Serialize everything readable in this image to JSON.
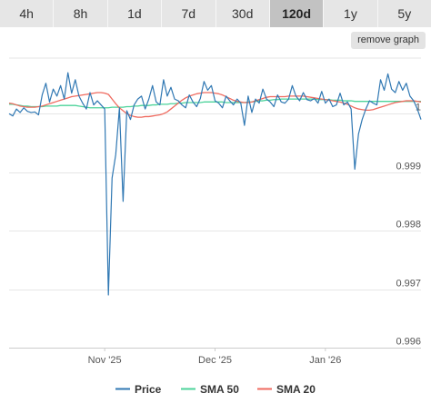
{
  "tabs": [
    {
      "label": "4h",
      "active": false
    },
    {
      "label": "8h",
      "active": false
    },
    {
      "label": "1d",
      "active": false
    },
    {
      "label": "7d",
      "active": false
    },
    {
      "label": "30d",
      "active": false
    },
    {
      "label": "120d",
      "active": true
    },
    {
      "label": "1y",
      "active": false
    },
    {
      "label": "5y",
      "active": false
    }
  ],
  "remove_graph_label": "remove graph",
  "chart_data": {
    "type": "line",
    "ylim": [
      0.996,
      1.00095
    ],
    "y_ticks": [
      0.996,
      0.997,
      0.998,
      0.999,
      1
    ],
    "y_tick_labels": [
      "0.996",
      "0.997",
      "0.998",
      "0.999",
      "1"
    ],
    "x_tick_labels": [
      "Nov '25",
      "Dec '25",
      "Jan '26"
    ],
    "x_tick_index": [
      26,
      56,
      86
    ],
    "grid": true,
    "legend_position": "bottom-center",
    "series": [
      {
        "name": "Price",
        "color": "#3078b3",
        "values": [
          1.0,
          0.99996,
          1.00008,
          1.00002,
          1.0001,
          1.00004,
          1.00002,
          1.00003,
          0.99998,
          1.00032,
          1.00052,
          1.0002,
          1.00042,
          1.0003,
          1.00048,
          1.00025,
          1.0007,
          1.00035,
          1.00058,
          1.0003,
          1.00018,
          1.00008,
          1.00036,
          1.00015,
          1.00022,
          1.00015,
          1.00008,
          0.9969,
          0.9989,
          0.9993,
          1.0001,
          0.9985,
          1.00005,
          0.9999,
          1.00015,
          1.00025,
          1.0003,
          1.00008,
          1.00025,
          1.00048,
          1.0002,
          1.00015,
          1.00058,
          1.0003,
          1.00045,
          1.00025,
          1.00022,
          1.00015,
          1.0001,
          1.00032,
          1.0002,
          1.00012,
          1.00026,
          1.00055,
          1.0004,
          1.00048,
          1.00022,
          1.00018,
          1.0001,
          1.0003,
          1.00022,
          1.00015,
          1.00025,
          1.00018,
          0.9998,
          1.0003,
          1.00002,
          1.00025,
          1.00018,
          1.00042,
          1.00025,
          1.0002,
          1.00012,
          1.00032,
          1.0002,
          1.00018,
          1.00025,
          1.00048,
          1.0003,
          1.00022,
          1.00036,
          1.00024,
          1.00022,
          1.00026,
          1.00018,
          1.00038,
          1.00018,
          1.00025,
          1.00012,
          1.00015,
          1.00035,
          1.00015,
          1.0002,
          1.00008,
          0.99905,
          0.99965,
          0.9999,
          1.00008,
          1.00022,
          1.00018,
          1.00015,
          1.00058,
          1.0004,
          1.00068,
          1.00042,
          1.00036,
          1.00055,
          1.0004,
          1.00052,
          1.0003,
          1.00022,
          1.00008,
          0.9999
        ]
      },
      {
        "name": "SMA 50",
        "color": "#4cd39a",
        "values": [
          1.00016,
          1.00016,
          1.00015,
          1.00014,
          1.00013,
          1.00013,
          1.00012,
          1.00012,
          1.00012,
          1.00012,
          1.00013,
          1.00013,
          1.00013,
          1.00013,
          1.00014,
          1.00014,
          1.00014,
          1.00014,
          1.00014,
          1.00013,
          1.00012,
          1.00011,
          1.0001,
          1.0001,
          1.0001,
          1.0001,
          1.0001,
          1.0001,
          1.00011,
          1.00011,
          1.00011,
          1.00011,
          1.00012,
          1.00012,
          1.00013,
          1.00013,
          1.00014,
          1.00014,
          1.00014,
          1.00015,
          1.00015,
          1.00016,
          1.00016,
          1.00016,
          1.00017,
          1.00017,
          1.00018,
          1.00018,
          1.00019,
          1.00019,
          1.00019,
          1.00019,
          1.00019,
          1.0002,
          1.0002,
          1.0002,
          1.0002,
          1.0002,
          1.0002,
          1.00019,
          1.00019,
          1.00019,
          1.00019,
          1.00019,
          1.00019,
          1.0002,
          1.0002,
          1.00021,
          1.00022,
          1.00022,
          1.00023,
          1.00023,
          1.00024,
          1.00024,
          1.00025,
          1.00025,
          1.00025,
          1.00025,
          1.00025,
          1.00025,
          1.00025,
          1.00025,
          1.00025,
          1.00025,
          1.00024,
          1.00024,
          1.00024,
          1.00024,
          1.00023,
          1.00023,
          1.00023,
          1.00022,
          1.00022,
          1.00022,
          1.00021,
          1.00021,
          1.00021,
          1.00021,
          1.00021,
          1.00021,
          1.00021,
          1.00021,
          1.00021,
          1.00021,
          1.00021,
          1.00021,
          1.00021,
          1.00021,
          1.00021,
          1.00021,
          1.00021,
          1.00021,
          1.00021
        ]
      },
      {
        "name": "SMA 20",
        "color": "#ef6a5f",
        "values": [
          1.00018,
          1.00017,
          1.00015,
          1.00013,
          1.00012,
          1.00011,
          1.00011,
          1.00011,
          1.00012,
          1.00013,
          1.00015,
          1.00017,
          1.00019,
          1.00021,
          1.00023,
          1.00025,
          1.00027,
          1.00029,
          1.0003,
          1.00031,
          1.00032,
          1.00033,
          1.00034,
          1.00035,
          1.00036,
          1.00036,
          1.00035,
          1.00033,
          1.00025,
          1.00017,
          1.0001,
          1.00005,
          1.0,
          0.99997,
          0.99995,
          0.99994,
          0.99994,
          0.99995,
          0.99995,
          0.99996,
          0.99997,
          0.99998,
          1.0,
          1.00003,
          1.00008,
          1.00013,
          1.00018,
          1.00023,
          1.00027,
          1.0003,
          1.00032,
          1.00034,
          1.00035,
          1.00036,
          1.00036,
          1.00036,
          1.00035,
          1.00034,
          1.00032,
          1.00029,
          1.00026,
          1.00023,
          1.00021,
          1.0002,
          1.00019,
          1.00019,
          1.0002,
          1.00022,
          1.00024,
          1.00026,
          1.00028,
          1.00029,
          1.00029,
          1.00029,
          1.00029,
          1.00029,
          1.0003,
          1.0003,
          1.0003,
          1.0003,
          1.0003,
          1.00029,
          1.00028,
          1.00027,
          1.00026,
          1.00025,
          1.00024,
          1.00023,
          1.00022,
          1.00021,
          1.0002,
          1.00018,
          1.00016,
          1.00013,
          1.0001,
          1.00008,
          1.00007,
          1.00006,
          1.00006,
          1.00007,
          1.00009,
          1.00011,
          1.00013,
          1.00015,
          1.00017,
          1.00019,
          1.0002,
          1.00021,
          1.00022,
          1.00022,
          1.00022,
          1.00021,
          1.0002
        ]
      }
    ]
  }
}
